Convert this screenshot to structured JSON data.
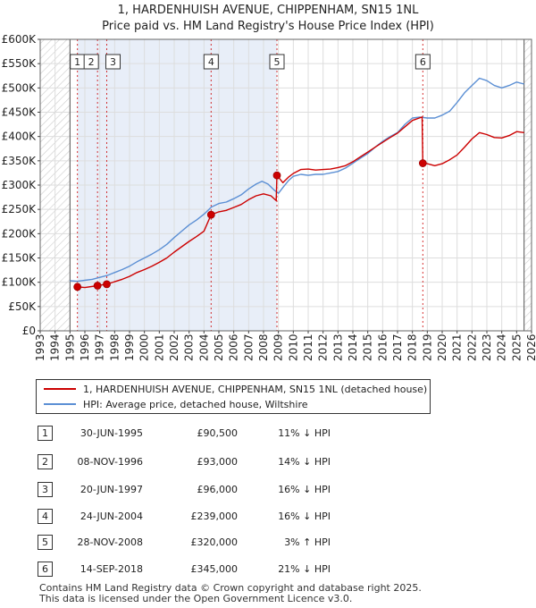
{
  "title_line1": "1, HARDENHUISH AVENUE, CHIPPENHAM, SN15 1NL",
  "title_line2": "Price paid vs. HM Land Registry's House Price Index (HPI)",
  "colors": {
    "price": "#cc0000",
    "hpi": "#5b8fd4",
    "band": "#e8eef8",
    "hatch": "#cccccc",
    "grid": "#dddddd"
  },
  "legend": {
    "price_label": "1, HARDENHUISH AVENUE, CHIPPENHAM, SN15 1NL (detached house)",
    "hpi_label": "HPI: Average price, detached house, Wiltshire"
  },
  "transactions": [
    {
      "num": "1",
      "date": "30-JUN-1995",
      "price": "£90,500",
      "hpi_rel": "11% ↓ HPI"
    },
    {
      "num": "2",
      "date": "08-NOV-1996",
      "price": "£93,000",
      "hpi_rel": "14% ↓ HPI"
    },
    {
      "num": "3",
      "date": "20-JUN-1997",
      "price": "£96,000",
      "hpi_rel": "16% ↓ HPI"
    },
    {
      "num": "4",
      "date": "24-JUN-2004",
      "price": "£239,000",
      "hpi_rel": "16% ↓ HPI"
    },
    {
      "num": "5",
      "date": "28-NOV-2008",
      "price": "£320,000",
      "hpi_rel": "3% ↑ HPI"
    },
    {
      "num": "6",
      "date": "14-SEP-2018",
      "price": "£345,000",
      "hpi_rel": "21% ↓ HPI"
    }
  ],
  "footer": {
    "line1": "Contains HM Land Registry data © Crown copyright and database right 2025.",
    "line2": "This data is licensed under the Open Government Licence v3.0."
  },
  "chart_data": {
    "type": "line",
    "title": "Price paid vs. HM Land Registry's House Price Index (HPI)",
    "xlim": [
      1993,
      2026
    ],
    "ylim": [
      0,
      600000
    ],
    "x_ticks": [
      1993,
      1994,
      1995,
      1996,
      1997,
      1998,
      1999,
      2000,
      2001,
      2002,
      2003,
      2004,
      2005,
      2006,
      2007,
      2008,
      2009,
      2010,
      2011,
      2012,
      2013,
      2014,
      2015,
      2016,
      2017,
      2018,
      2019,
      2020,
      2021,
      2022,
      2023,
      2024,
      2025,
      2026
    ],
    "y_ticks": [
      0,
      50000,
      100000,
      150000,
      200000,
      250000,
      300000,
      350000,
      400000,
      450000,
      500000,
      550000,
      600000
    ],
    "y_tick_labels": [
      "£0",
      "£50K",
      "£100K",
      "£150K",
      "£200K",
      "£250K",
      "£300K",
      "£350K",
      "£400K",
      "£450K",
      "£500K",
      "£550K",
      "£600K"
    ],
    "sale_markers": [
      {
        "label": "1",
        "x": 1995.5,
        "y": 90500
      },
      {
        "label": "2",
        "x": 1996.85,
        "y": 93000
      },
      {
        "label": "3",
        "x": 1997.47,
        "y": 96000
      },
      {
        "label": "4",
        "x": 2004.48,
        "y": 239000
      },
      {
        "label": "5",
        "x": 2008.9,
        "y": 320000
      },
      {
        "label": "6",
        "x": 2018.7,
        "y": 345000
      }
    ],
    "data_range_start": 1995.0,
    "data_range_end": 2025.5,
    "series": [
      {
        "name": "HPI: Average price, detached house, Wiltshire",
        "x": [
          1995.0,
          1995.5,
          1996.0,
          1996.5,
          1997.0,
          1997.5,
          1998.0,
          1998.5,
          1999.0,
          1999.5,
          2000.0,
          2000.5,
          2001.0,
          2001.5,
          2002.0,
          2002.5,
          2003.0,
          2003.5,
          2004.0,
          2004.5,
          2005.0,
          2005.5,
          2006.0,
          2006.5,
          2007.0,
          2007.5,
          2007.9,
          2008.3,
          2008.7,
          2009.0,
          2009.3,
          2009.7,
          2010.0,
          2010.5,
          2011.0,
          2011.5,
          2012.0,
          2012.5,
          2013.0,
          2013.5,
          2014.0,
          2014.5,
          2015.0,
          2015.5,
          2016.0,
          2016.5,
          2017.0,
          2017.5,
          2018.0,
          2018.5,
          2019.0,
          2019.5,
          2020.0,
          2020.5,
          2021.0,
          2021.5,
          2022.0,
          2022.5,
          2023.0,
          2023.5,
          2024.0,
          2024.5,
          2025.0,
          2025.5
        ],
        "y": [
          103000,
          102000,
          104000,
          106000,
          110000,
          114000,
          120000,
          126000,
          133000,
          142000,
          150000,
          158000,
          167000,
          178000,
          192000,
          205000,
          218000,
          228000,
          240000,
          255000,
          262000,
          265000,
          272000,
          280000,
          292000,
          302000,
          308000,
          302000,
          290000,
          283000,
          295000,
          310000,
          318000,
          322000,
          320000,
          322000,
          322000,
          325000,
          328000,
          335000,
          345000,
          355000,
          365000,
          378000,
          390000,
          400000,
          408000,
          425000,
          438000,
          440000,
          438000,
          438000,
          444000,
          452000,
          470000,
          490000,
          505000,
          520000,
          515000,
          505000,
          500000,
          505000,
          512000,
          508000
        ]
      },
      {
        "name": "1, HARDENHUISH AVENUE, CHIPPENHAM, SN15 1NL (detached house)",
        "x": [
          1995.5,
          1996.0,
          1996.85,
          1997.0,
          1997.47,
          1998.0,
          1998.5,
          1999.0,
          1999.5,
          2000.0,
          2000.5,
          2001.0,
          2001.5,
          2002.0,
          2002.5,
          2003.0,
          2003.5,
          2004.0,
          2004.48,
          2005.0,
          2005.5,
          2006.0,
          2006.5,
          2007.0,
          2007.5,
          2008.0,
          2008.5,
          2008.85,
          2008.9,
          2009.3,
          2009.7,
          2010.0,
          2010.5,
          2011.0,
          2011.5,
          2012.0,
          2012.5,
          2013.0,
          2013.5,
          2014.0,
          2014.5,
          2015.0,
          2015.5,
          2016.0,
          2016.5,
          2017.0,
          2017.5,
          2018.0,
          2018.65,
          2018.7,
          2019.0,
          2019.5,
          2020.0,
          2020.5,
          2021.0,
          2021.5,
          2022.0,
          2022.5,
          2023.0,
          2023.5,
          2024.0,
          2024.5,
          2025.0,
          2025.5
        ],
        "y": [
          90500,
          89000,
          93000,
          94000,
          96000,
          101000,
          106000,
          112000,
          120000,
          126000,
          133000,
          141000,
          150000,
          162000,
          173000,
          184000,
          194000,
          205000,
          239000,
          245000,
          248000,
          254000,
          260000,
          270000,
          278000,
          282000,
          278000,
          268000,
          320000,
          305000,
          317000,
          324000,
          332000,
          333000,
          331000,
          332000,
          333000,
          336000,
          340000,
          348000,
          358000,
          368000,
          378000,
          388000,
          398000,
          407000,
          420000,
          433000,
          440000,
          345000,
          344000,
          340000,
          344000,
          352000,
          362000,
          378000,
          395000,
          408000,
          404000,
          398000,
          397000,
          402000,
          410000,
          408000
        ]
      }
    ]
  }
}
